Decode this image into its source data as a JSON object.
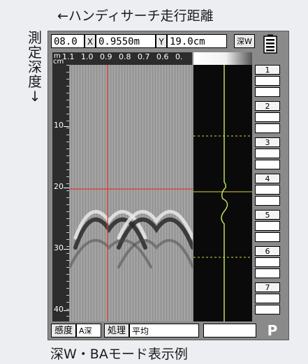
{
  "captions": {
    "top": "←ハンディサーチ走行距離",
    "left": "測定深度↓",
    "bottom": "深W・BAモード表示例"
  },
  "toolbar": {
    "mode_value": "08.0",
    "x_label": "X",
    "x_value": "0.9550m",
    "y_label": "Y",
    "y_value": "19.0cm",
    "depth_mode": "深W"
  },
  "axis": {
    "top_unit": "m",
    "left_unit": "cm",
    "distance_ticks": [
      "1.1",
      "1.0",
      "0.9",
      "0.8",
      "0.7",
      "0.6",
      "0."
    ],
    "depth_ticks": [
      "10",
      "20",
      "30",
      "40"
    ]
  },
  "side_panel": {
    "items": [
      "1",
      "2",
      "3",
      "4",
      "5",
      "6",
      "7"
    ]
  },
  "status_bar": {
    "sensitivity_label": "感度",
    "sensitivity_value": "A深",
    "processing_label": "処理",
    "processing_value": "平均",
    "extra_value": "",
    "p_label": "P"
  },
  "icons": {
    "battery": "battery-icon"
  },
  "colors": {
    "crosshair": "#e03a2a",
    "trace": "#b8e05a",
    "guide": "#d8d040"
  }
}
